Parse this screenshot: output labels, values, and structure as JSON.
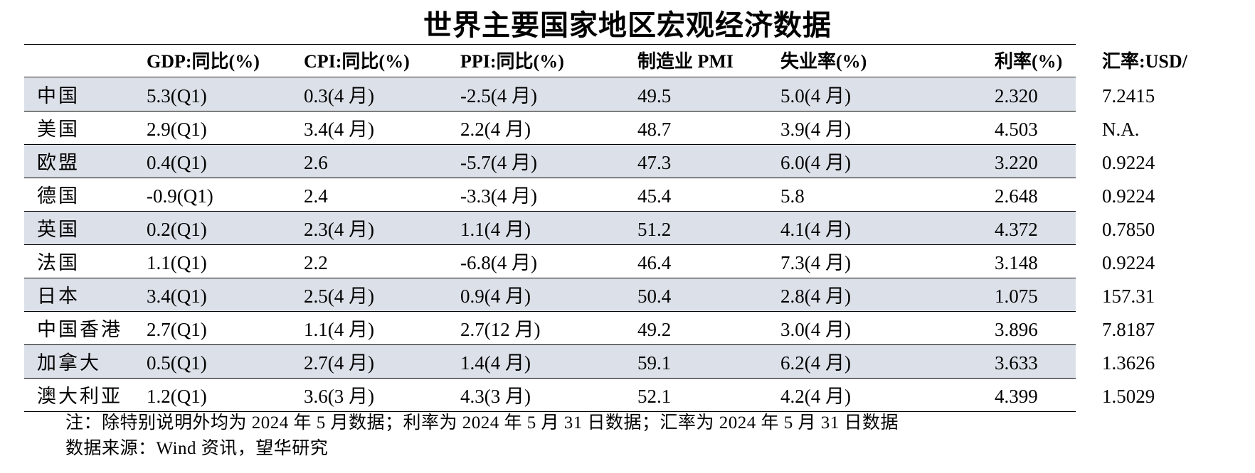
{
  "title": "世界主要国家地区宏观经济数据",
  "columns": [
    "",
    "GDP:同比(%)",
    "CPI:同比(%)",
    "PPI:同比(%)",
    "制造业 PMI",
    "失业率(%)",
    "利率(%)",
    "汇率:USD/"
  ],
  "rows": [
    [
      "中国",
      "5.3(Q1)",
      "0.3(4 月)",
      "-2.5(4 月)",
      "49.5",
      "5.0(4 月)",
      "2.320",
      "7.2415"
    ],
    [
      "美国",
      "2.9(Q1)",
      "3.4(4 月)",
      "2.2(4 月)",
      "48.7",
      "3.9(4 月)",
      "4.503",
      "N.A."
    ],
    [
      "欧盟",
      "0.4(Q1)",
      "2.6",
      "-5.7(4 月)",
      "47.3",
      "6.0(4 月)",
      "3.220",
      "0.9224"
    ],
    [
      "德国",
      "-0.9(Q1)",
      "2.4",
      "-3.3(4 月)",
      "45.4",
      "5.8",
      "2.648",
      "0.9224"
    ],
    [
      "英国",
      "0.2(Q1)",
      "2.3(4 月)",
      "1.1(4 月)",
      "51.2",
      "4.1(4 月)",
      "4.372",
      "0.7850"
    ],
    [
      "法国",
      "1.1(Q1)",
      "2.2",
      "-6.8(4 月)",
      "46.4",
      "7.3(4 月)",
      "3.148",
      "0.9224"
    ],
    [
      "日本",
      "3.4(Q1)",
      "2.5(4 月)",
      "0.9(4 月)",
      "50.4",
      "2.8(4 月)",
      "1.075",
      "157.31"
    ],
    [
      "中国香港",
      "2.7(Q1)",
      "1.1(4 月)",
      "2.7(12 月)",
      "49.2",
      "3.0(4 月)",
      "3.896",
      "7.8187"
    ],
    [
      "加拿大",
      "0.5(Q1)",
      "2.7(4 月)",
      "1.4(4 月)",
      "59.1",
      "6.2(4 月)",
      "3.633",
      "1.3626"
    ],
    [
      "澳大利亚",
      "1.2(Q1)",
      "3.6(3 月)",
      "4.3(3 月)",
      "52.1",
      "4.2(4 月)",
      "4.399",
      "1.5029"
    ]
  ],
  "shaded_rows": [
    0,
    2,
    4,
    6,
    8
  ],
  "shade_color": "#dce1e9",
  "notes": [
    "注：除特别说明外均为 2024 年 5 月数据；利率为 2024 年 5 月 31 日数据；汇率为 2024 年 5 月 31 日数据",
    "数据来源：Wind 资讯，望华研究"
  ]
}
